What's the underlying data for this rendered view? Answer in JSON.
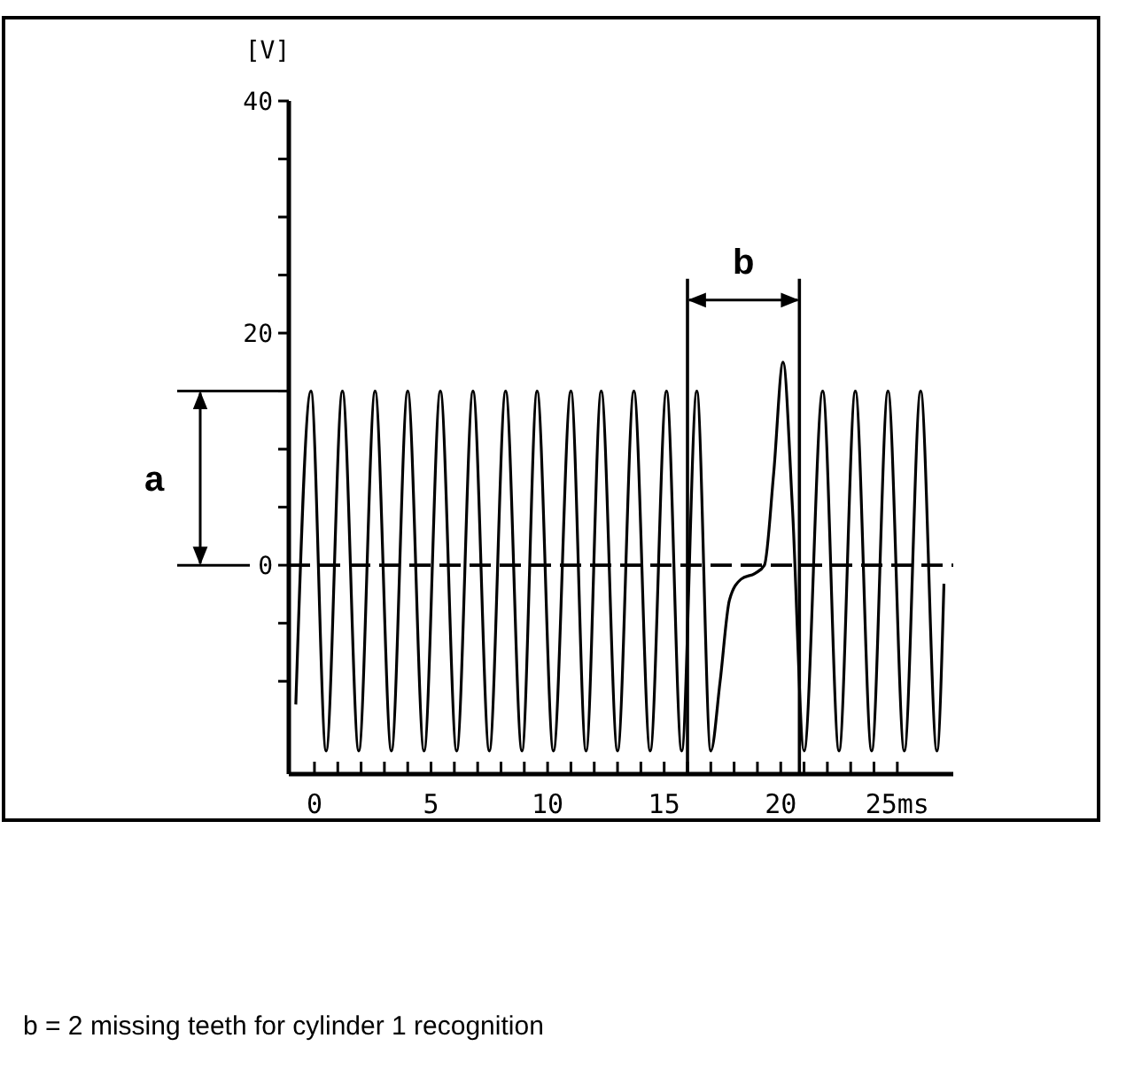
{
  "chart_data": {
    "type": "line",
    "ylabel": "[V]",
    "x": [
      -0.8,
      -0.15,
      0.5,
      1.2,
      1.9,
      2.6,
      3.3,
      4.0,
      4.7,
      5.4,
      6.1,
      6.8,
      7.5,
      8.2,
      8.9,
      9.55,
      10.25,
      11.0,
      11.65,
      12.3,
      13.0,
      13.7,
      14.4,
      15.1,
      15.75,
      16.4,
      17.0,
      17.4,
      17.8,
      18.3,
      18.9,
      19.3,
      19.7,
      20.1,
      20.5,
      21.0,
      21.8,
      22.5,
      23.2,
      23.9,
      24.6,
      25.3,
      26.0,
      26.7,
      27.0
    ],
    "series": [
      {
        "color": "#000000",
        "values": [
          -12,
          15,
          -16,
          15,
          -16,
          15,
          -16,
          15,
          -16,
          15,
          -16,
          15,
          -16,
          15,
          -16,
          15,
          -16,
          15,
          -16,
          15,
          -16,
          15,
          -16,
          15,
          -16,
          15,
          -16,
          -10,
          -3,
          -1.2,
          -0.7,
          0,
          8,
          17.5,
          5,
          -16,
          15,
          -16,
          15,
          -16,
          15,
          -16,
          15,
          -16,
          -1.6
        ]
      }
    ],
    "xlim": [
      -1.1,
      27.4
    ],
    "xticks": [
      0,
      {
        "value": 1,
        "label": null
      },
      {
        "value": 2,
        "label": null
      },
      {
        "value": 3,
        "label": null
      },
      {
        "value": 4,
        "label": null
      },
      5,
      {
        "value": 6,
        "label": null
      },
      {
        "value": 7,
        "label": null
      },
      {
        "value": 8,
        "label": null
      },
      {
        "value": 9,
        "label": null
      },
      10,
      {
        "value": 11,
        "label": null
      },
      {
        "value": 12,
        "label": null
      },
      {
        "value": 13,
        "label": null
      },
      {
        "value": 14,
        "label": null
      },
      15,
      {
        "value": 16,
        "label": null
      },
      {
        "value": 17,
        "label": null
      },
      {
        "value": 18,
        "label": null
      },
      {
        "value": 19,
        "label": null
      },
      20,
      {
        "value": 21,
        "label": null
      },
      {
        "value": 22,
        "label": null
      },
      {
        "value": 23,
        "label": null
      },
      {
        "value": 24,
        "label": null
      },
      {
        "value": 25,
        "label": "25ms"
      }
    ],
    "ylim": [
      -18,
      40
    ],
    "yticks": [
      {
        "value": -10,
        "label": null
      },
      {
        "value": -5,
        "label": null
      },
      0,
      {
        "value": 5,
        "label": null
      },
      {
        "value": 10,
        "label": null
      },
      {
        "value": 15,
        "label": null
      },
      20,
      {
        "value": 25,
        "label": null
      },
      {
        "value": 30,
        "label": null
      },
      {
        "value": 35,
        "label": null
      },
      40
    ],
    "ref_lines": [
      {
        "axis": "y",
        "value": 0,
        "line_style": "dashed"
      },
      {
        "axis": "x",
        "value": 16.0
      },
      {
        "axis": "x",
        "value": 20.8
      }
    ],
    "annotations": [
      "a",
      "b",
      "b = 2 missing teeth for cylinder 1 recognition"
    ],
    "grid": false,
    "marker": "none",
    "line_style": "solid"
  }
}
